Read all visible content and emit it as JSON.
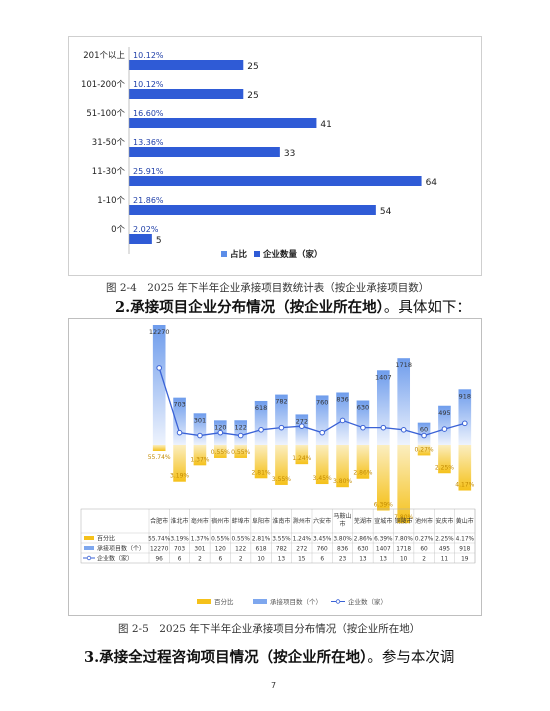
{
  "chart_data": [
    {
      "type": "bar",
      "orientation": "horizontal",
      "categories": [
        "201个以上",
        "101-200个",
        "51-100个",
        "31-50个",
        "11-30个",
        "1-10个",
        "0个"
      ],
      "series": [
        {
          "name": "占比",
          "values": [
            "10.12%",
            "10.12%",
            "16.60%",
            "13.36%",
            "25.91%",
            "21.86%",
            "2.02%"
          ]
        },
        {
          "name": "企业数量（家）",
          "values": [
            25,
            25,
            41,
            33,
            64,
            54,
            5
          ]
        }
      ],
      "xlim": [
        0,
        70
      ],
      "legend": "bottom",
      "colors": {
        "bar": "#2f5bd6",
        "label": "#1f3fa8"
      }
    },
    {
      "type": "bar",
      "categories": [
        "合肥市",
        "淮北市",
        "亳州市",
        "宿州市",
        "蚌埠市",
        "阜阳市",
        "淮南市",
        "滁州市",
        "六安市",
        "马鞍山市",
        "芜湖市",
        "宣城市",
        "铜陵市",
        "池州市",
        "安庆市",
        "黄山市"
      ],
      "series": [
        {
          "name": "百分比",
          "values": [
            "55.74%",
            "3.19%",
            "1.37%",
            "0.55%",
            "0.55%",
            "2.81%",
            "3.55%",
            "1.24%",
            "3.45%",
            "3.80%",
            "2.86%",
            "6.39%",
            "7.80%",
            "0.27%",
            "2.25%",
            "4.17%"
          ]
        },
        {
          "name": "承接项目数（个）",
          "values": [
            12270,
            703,
            301,
            120,
            122,
            618,
            782,
            272,
            760,
            836,
            630,
            1407,
            1718,
            60,
            495,
            918
          ]
        },
        {
          "name": "企业数（家）",
          "values": [
            96,
            6,
            2,
            6,
            2,
            10,
            13,
            15,
            6,
            23,
            13,
            13,
            10,
            2,
            11,
            19
          ]
        }
      ],
      "legend": "bottom",
      "colors": {
        "pct": "#f5c11a",
        "proj": "#7ea7ee",
        "line": "#3a62d6"
      }
    }
  ],
  "doc": {
    "caption1": "图 2-4　2025 年下半年企业承接项目数统计表（按企业承接项目数）",
    "heading2_num": "2.",
    "heading2_bold": "承接项目企业分布情况（按企业所在地）",
    "heading2_tail": "。具体如下：",
    "caption2": "图 2-5　2025 年下半年企业承接项目分布情况（按企业所在地）",
    "heading3_num": "3.",
    "heading3_bold": "承接全过程咨询项目情况（按企业所在地）",
    "heading3_tail": "。参与本次调",
    "page_number": "7"
  },
  "table_row_labels": [
    "百分比",
    "承接项目数（个）",
    "企业数（家）"
  ]
}
